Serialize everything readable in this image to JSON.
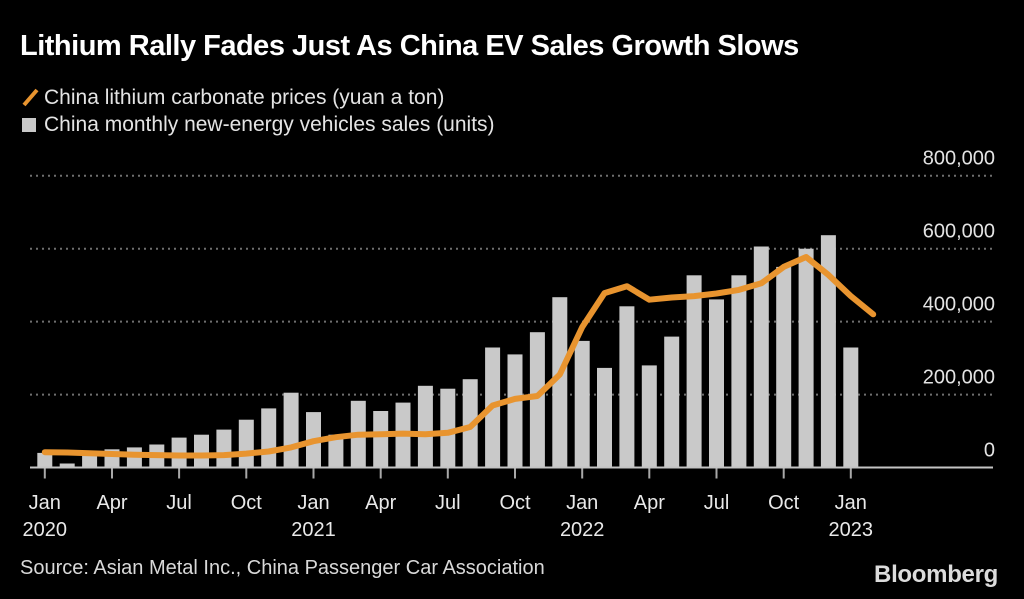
{
  "title": "Lithium Rally Fades Just As China EV Sales Growth Slows",
  "legend": [
    {
      "label": "China lithium carbonate prices (yuan a ton)",
      "type": "line",
      "color": "#E8942F"
    },
    {
      "label": "China monthly new-energy vehicles sales (units)",
      "type": "bar",
      "color": "#C9C9C9"
    }
  ],
  "source": "Source: Asian Metal Inc., China Passenger Car Association",
  "brand": "Bloomberg",
  "colors": {
    "background": "#000000",
    "title_text": "#FFFFFF",
    "axis_text": "#E3E3E3",
    "gridline": "#6F6F6F",
    "axis_line": "#C4C4C4",
    "line_series": "#E8942F",
    "bar_series": "#C9C9C9"
  },
  "chart_data": {
    "type": "bar+line",
    "title": "Lithium Rally Fades Just As China EV Sales Growth Slows",
    "x": [
      "Jan 2020",
      "Feb 2020",
      "Mar 2020",
      "Apr 2020",
      "May 2020",
      "Jun 2020",
      "Jul 2020",
      "Aug 2020",
      "Sep 2020",
      "Oct 2020",
      "Nov 2020",
      "Dec 2020",
      "Jan 2021",
      "Feb 2021",
      "Mar 2021",
      "Apr 2021",
      "May 2021",
      "Jun 2021",
      "Jul 2021",
      "Aug 2021",
      "Sep 2021",
      "Oct 2021",
      "Nov 2021",
      "Dec 2021",
      "Jan 2022",
      "Feb 2022",
      "Mar 2022",
      "Apr 2022",
      "May 2022",
      "Jun 2022",
      "Jul 2022",
      "Aug 2022",
      "Sep 2022",
      "Oct 2022",
      "Nov 2022",
      "Dec 2022",
      "Jan 2023",
      "Feb 2023"
    ],
    "series": [
      {
        "name": "China monthly new-energy vehicles sales (units)",
        "type": "bar",
        "color": "#C9C9C9",
        "values": [
          40000,
          11000,
          45000,
          50000,
          55000,
          63000,
          82000,
          90000,
          104000,
          131000,
          162000,
          205000,
          152000,
          90000,
          183000,
          155000,
          178000,
          224000,
          216000,
          242000,
          329000,
          310000,
          371000,
          467000,
          347000,
          273000,
          442000,
          280000,
          359000,
          527000,
          461000,
          527000,
          606000,
          550000,
          600000,
          637000,
          329000,
          null
        ]
      },
      {
        "name": "China lithium carbonate prices (yuan a ton)",
        "type": "line",
        "color": "#E8942F",
        "values": [
          42000,
          41000,
          39000,
          37000,
          35000,
          34000,
          33000,
          33000,
          34000,
          38000,
          44000,
          55000,
          72000,
          83000,
          90000,
          91000,
          93000,
          91000,
          95000,
          111000,
          170000,
          188000,
          196000,
          255000,
          385000,
          478000,
          497000,
          460000,
          466000,
          470000,
          477000,
          487000,
          505000,
          550000,
          577000,
          528000,
          470000,
          420000
        ]
      }
    ],
    "ylim": [
      0,
      800000
    ],
    "yticks": [
      0,
      200000,
      400000,
      600000,
      800000
    ],
    "ytick_labels": [
      "0",
      "200,000",
      "400,000",
      "600,000",
      "800,000"
    ],
    "xticks": [
      {
        "index": 0,
        "label": "Jan",
        "year": "2020"
      },
      {
        "index": 3,
        "label": "Apr"
      },
      {
        "index": 6,
        "label": "Jul"
      },
      {
        "index": 9,
        "label": "Oct"
      },
      {
        "index": 12,
        "label": "Jan",
        "year": "2021"
      },
      {
        "index": 15,
        "label": "Apr"
      },
      {
        "index": 18,
        "label": "Jul"
      },
      {
        "index": 21,
        "label": "Oct"
      },
      {
        "index": 24,
        "label": "Jan",
        "year": "2022"
      },
      {
        "index": 27,
        "label": "Apr"
      },
      {
        "index": 30,
        "label": "Jul"
      },
      {
        "index": 33,
        "label": "Oct"
      },
      {
        "index": 36,
        "label": "Jan",
        "year": "2023"
      }
    ],
    "grid": "horizontal-dotted",
    "legend_position": "top-left",
    "y_axis_side": "right"
  }
}
